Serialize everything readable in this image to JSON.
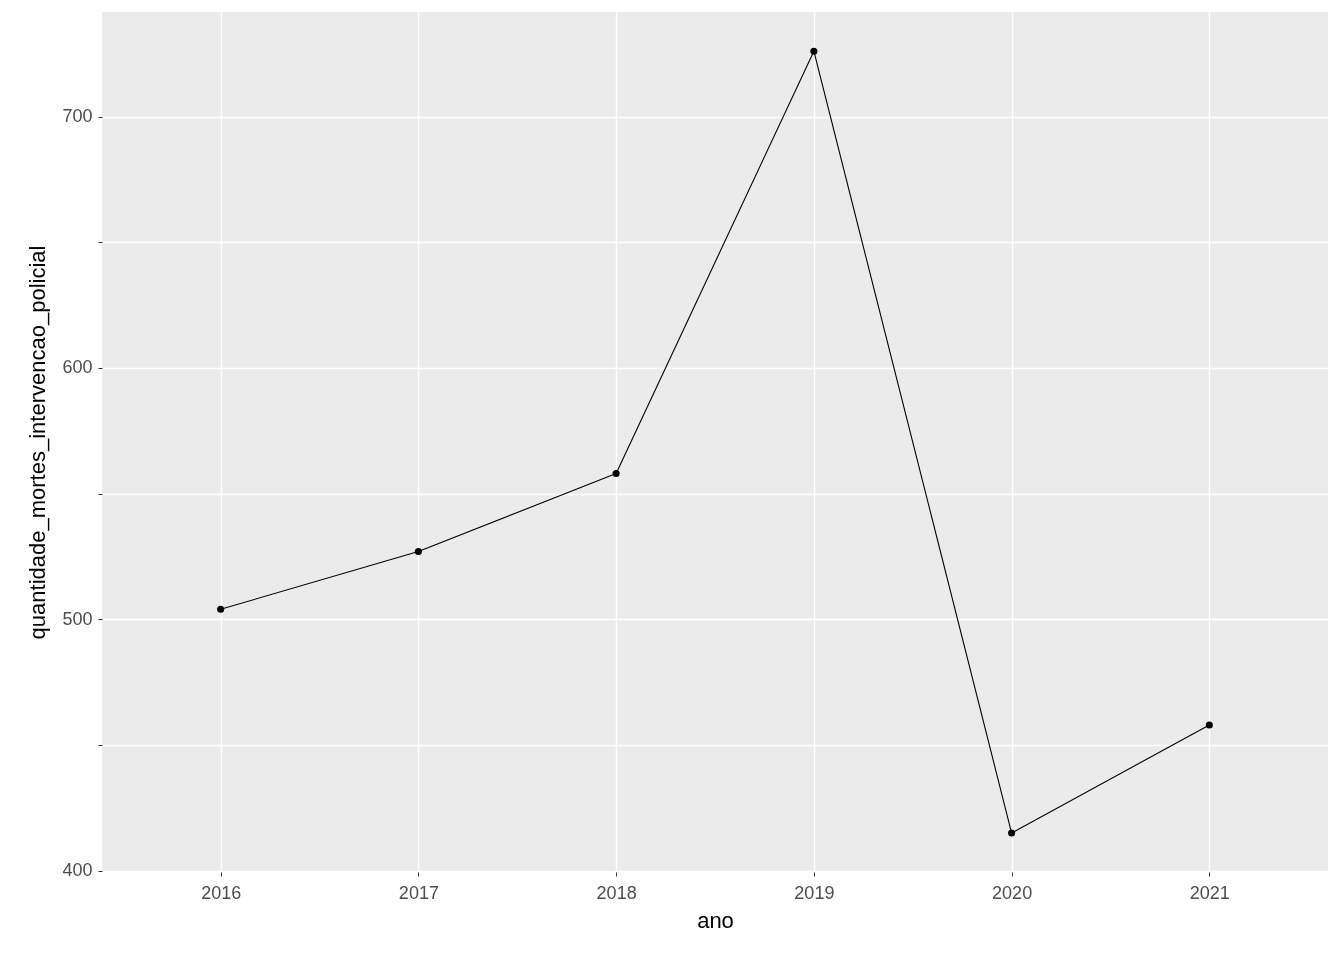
{
  "chart_data": {
    "type": "line",
    "xlabel": "ano",
    "ylabel": "quantidade_mortes_intervencao_policial",
    "categories": [
      "2016",
      "2017",
      "2018",
      "2019",
      "2020",
      "2021"
    ],
    "series": [
      {
        "color": "#000000",
        "values": [
          504,
          527,
          558,
          726,
          415,
          458
        ]
      }
    ],
    "ylim": [
      399.5,
      741.6
    ],
    "yticks": [
      400,
      {
        "value": 450,
        "label": null
      },
      500,
      {
        "value": 550,
        "label": null
      },
      600,
      {
        "value": 650,
        "label": null
      },
      700
    ],
    "grid": true,
    "marker": "circle",
    "line_style": "solid"
  }
}
